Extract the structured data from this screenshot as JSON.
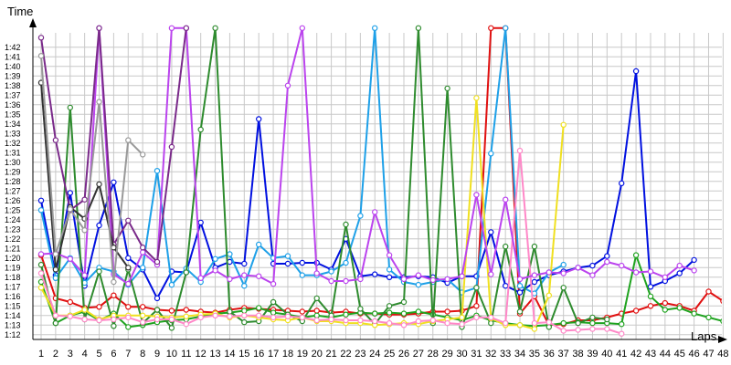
{
  "chart_data": {
    "type": "line",
    "ylabel": "Time",
    "xlabel": "Laps",
    "y_ticks": [
      "1:12",
      "1:13",
      "1:14",
      "1:15",
      "1:16",
      "1:17",
      "1:18",
      "1:19",
      "1:20",
      "1:21",
      "1:22",
      "1:23",
      "1:24",
      "1:25",
      "1:26",
      "1:27",
      "1:28",
      "1:29",
      "1:30",
      "1:31",
      "1:32",
      "1:33",
      "1:34",
      "1:35",
      "1:36",
      "1:37",
      "1:38",
      "1:39",
      "1:40",
      "1:41",
      "1:42"
    ],
    "x_ticks": [
      1,
      2,
      3,
      4,
      5,
      6,
      7,
      8,
      9,
      10,
      11,
      12,
      13,
      14,
      15,
      16,
      17,
      18,
      19,
      20,
      21,
      22,
      23,
      24,
      25,
      26,
      27,
      28,
      29,
      30,
      31,
      32,
      33,
      34,
      35,
      36,
      37,
      38,
      39,
      40,
      41,
      42,
      43,
      44,
      45,
      46,
      47,
      48
    ],
    "ylim_seconds": [
      71.5,
      103.5
    ],
    "xlim": [
      0,
      48.6
    ],
    "grid": true,
    "legend": "none",
    "series": [
      {
        "color": "#e01010",
        "x": [
          1,
          2,
          3,
          4,
          5,
          6,
          7,
          8,
          9,
          10,
          11,
          12,
          13,
          14,
          15,
          16,
          17,
          18,
          19,
          20,
          21,
          22,
          23,
          24,
          25,
          26,
          27,
          28,
          29,
          30,
          31,
          32,
          33,
          34,
          35,
          36,
          37,
          38,
          39,
          40,
          41,
          42,
          43,
          44,
          45,
          46,
          47,
          48
        ],
        "y": [
          80.3,
          75.8,
          75.4,
          74.8,
          74.9,
          76.1,
          74.9,
          74.9,
          74.6,
          74.5,
          74.6,
          74.4,
          74.3,
          74.6,
          74.8,
          74.7,
          74.6,
          74.5,
          74.4,
          74.5,
          74.3,
          74.4,
          74.2,
          74.2,
          74.1,
          74.1,
          74.2,
          74.4,
          74.4,
          74.5,
          75,
          104,
          104,
          74.2,
          76,
          73,
          73.1,
          73.5,
          73.5,
          73.8,
          74.2,
          74.5,
          75,
          75.3,
          75,
          74.5,
          76.5,
          75.5
        ]
      },
      {
        "color": "#0010e0",
        "x": [
          1,
          2,
          3,
          4,
          5,
          6,
          7,
          8,
          9,
          10,
          11,
          12,
          13,
          14,
          15,
          16,
          17,
          18,
          19,
          20,
          21,
          22,
          23,
          24,
          25,
          26,
          27,
          28,
          29,
          30,
          31,
          32,
          33,
          34,
          35,
          36,
          37,
          38,
          39,
          40,
          41,
          42,
          43,
          44,
          45,
          46
        ],
        "y": [
          86,
          78.2,
          86.8,
          77.1,
          83.4,
          87.9,
          80,
          78.8,
          75.8,
          78.6,
          78.5,
          83.7,
          79,
          79.6,
          79.4,
          94.5,
          79.4,
          79.4,
          79.5,
          79.5,
          78.8,
          82,
          78.1,
          78.3,
          78,
          78,
          78.1,
          78,
          77.4,
          78.1,
          78.1,
          82.7,
          77.1,
          76.4,
          77.5,
          78.2,
          78.6,
          79,
          79.2,
          80.2,
          87.8,
          99.5,
          77,
          77.6,
          78.4,
          79.8
        ]
      },
      {
        "color": "#1ea0e8",
        "x": [
          1,
          2,
          3,
          4,
          5,
          6,
          7,
          8,
          9,
          10,
          11,
          12,
          13,
          14,
          15,
          16,
          17,
          18,
          19,
          20,
          21,
          22,
          23,
          24,
          25,
          26,
          27,
          28,
          29,
          30,
          31,
          32,
          33,
          34,
          35,
          36,
          37
        ],
        "y": [
          85,
          77.9,
          80,
          77.4,
          79,
          78.6,
          77.2,
          79,
          89.1,
          77.2,
          78.9,
          77.5,
          79.9,
          80.4,
          77.1,
          81.4,
          80,
          80.2,
          78.2,
          78.2,
          78.6,
          79.5,
          84.4,
          104,
          78.8,
          77.5,
          77.2,
          77.5,
          77.8,
          76.4,
          76.9,
          90.9,
          104,
          77.1,
          76.3,
          78.5,
          79.3
        ]
      },
      {
        "color": "#1fa31f",
        "x": [
          1,
          2,
          3,
          4,
          5,
          6,
          7,
          8,
          9,
          10,
          11,
          12,
          13,
          14,
          15,
          16,
          17,
          18,
          19,
          20,
          21,
          22,
          23,
          24,
          25,
          26,
          27,
          28,
          29,
          30,
          31,
          32,
          33,
          34,
          35,
          36,
          37,
          38,
          39,
          40,
          41,
          42,
          43,
          44,
          45,
          46,
          47,
          48
        ],
        "y": [
          77.5,
          73.2,
          74,
          74.4,
          73.5,
          74.2,
          72.8,
          73,
          73.3,
          73.5,
          73.6,
          73.9,
          74.2,
          74.3,
          74.5,
          74.8,
          74.3,
          74.1,
          73.8,
          74,
          73.8,
          74.1,
          74.3,
          74.2,
          74.3,
          74.2,
          74.4,
          74.1,
          73.8,
          73.5,
          74,
          73.5,
          73.2,
          73,
          72.9,
          73,
          73.2,
          73.3,
          73.2,
          73.2,
          73.1,
          80.3,
          76,
          74.6,
          74.8,
          74.2,
          73.8,
          73.4
        ]
      },
      {
        "color": "#2e8b2e",
        "x": [
          1,
          2,
          3,
          4,
          5,
          6,
          7,
          8,
          9,
          10,
          11,
          12,
          13,
          14,
          15,
          16,
          17,
          18,
          19,
          20,
          21,
          22,
          23,
          24,
          25,
          26,
          27,
          28,
          29,
          30,
          31,
          32,
          33,
          34,
          35,
          36,
          37,
          38,
          39,
          40
        ],
        "y": [
          79.3,
          73.2,
          95.7,
          73.6,
          78.6,
          72.9,
          78.8,
          73.2,
          74.6,
          72.7,
          78.5,
          93.4,
          104,
          74.4,
          73.3,
          73.4,
          75.4,
          74.1,
          73.4,
          75.8,
          74,
          83.5,
          74.7,
          73.1,
          75,
          75.4,
          104,
          73.2,
          97.7,
          72.8,
          76.9,
          73.2,
          81.2,
          74.4,
          81.2,
          72.8,
          76.9,
          73.2,
          73.8,
          73.6
        ]
      },
      {
        "color": "#f0e020",
        "x": [
          1,
          2,
          3,
          4,
          5,
          6,
          7,
          8,
          9,
          10,
          11,
          12,
          13,
          14,
          15,
          16,
          17,
          18,
          19,
          20,
          21,
          22,
          23,
          24,
          25,
          26,
          27,
          28,
          29,
          30,
          31,
          32,
          33,
          34,
          35,
          36,
          37
        ],
        "y": [
          76.9,
          74,
          74,
          74.6,
          73.6,
          74,
          74,
          74,
          73.9,
          73.8,
          73.9,
          74.1,
          74.2,
          73.8,
          74,
          73.8,
          73.6,
          73.5,
          73.8,
          73.4,
          73.4,
          73.2,
          73.2,
          73,
          73.1,
          73.2,
          73.1,
          73.4,
          73.6,
          73.8,
          96.7,
          73.7,
          73,
          73,
          72.6,
          76.1,
          93.9
        ]
      },
      {
        "color": "#ff88c8",
        "x": [
          1,
          2,
          3,
          4,
          5,
          6,
          7,
          8,
          9,
          10,
          11,
          12,
          13,
          14,
          15,
          16,
          17,
          18,
          19,
          20,
          21,
          22,
          23,
          24,
          25,
          26,
          27,
          28,
          29,
          30,
          31,
          32,
          33,
          34,
          35,
          36,
          37,
          38,
          39,
          40,
          41
        ],
        "y": [
          78.4,
          74,
          73.9,
          73.6,
          73.5,
          73.6,
          73.8,
          73.3,
          73.6,
          73.6,
          73.1,
          73.8,
          74,
          73.9,
          74,
          74,
          73.8,
          73.9,
          73.8,
          73.5,
          73.6,
          73.5,
          73.5,
          73.4,
          73.2,
          73,
          73.4,
          73.5,
          73.2,
          73.1,
          73.8,
          73.8,
          73.2,
          91.2,
          73.2,
          73.3,
          72.4,
          72.5,
          72.6,
          72.6,
          72.1
        ]
      },
      {
        "color": "#bb44ee",
        "x": [
          1,
          2,
          3,
          4,
          5,
          6,
          7,
          8,
          9,
          10,
          11,
          12,
          13,
          14,
          15,
          16,
          17,
          18,
          19,
          20,
          21,
          22,
          23,
          24,
          25,
          26,
          27,
          28,
          29,
          30,
          31,
          32,
          33,
          34,
          35,
          36,
          37,
          38,
          39,
          40,
          41,
          42,
          43,
          44,
          45,
          46
        ],
        "y": [
          80.4,
          80.5,
          79.9,
          78.2,
          104,
          78.3,
          77.3,
          80.6,
          79.3,
          104,
          104,
          77.9,
          78.7,
          77.8,
          78.2,
          78.1,
          77.3,
          98,
          104,
          78.4,
          77.6,
          77.6,
          77.8,
          84.8,
          80.3,
          77.8,
          78.2,
          77.7,
          77.8,
          78.1,
          86.6,
          78.3,
          86.1,
          77.8,
          78.2,
          78.5,
          78.4,
          79,
          78.2,
          79.6,
          79.2,
          78.5,
          78.6,
          78,
          79.2,
          78.7
        ]
      },
      {
        "color": "#7a2a8a",
        "x": [
          1,
          2,
          3,
          4,
          5,
          6,
          7,
          8,
          9,
          10,
          11
        ],
        "y": [
          103,
          92.3,
          85,
          86.1,
          104,
          81.4,
          83.9,
          81.1,
          79.6,
          91.6,
          104
        ]
      },
      {
        "color": "#333333",
        "x": [
          1,
          2,
          3,
          4,
          5,
          6,
          7
        ],
        "y": [
          98.3,
          78.8,
          85.3,
          84.1,
          87.7,
          81.1,
          79
        ]
      },
      {
        "color": "#999999",
        "x": [
          1,
          2,
          3,
          4,
          5,
          6,
          7,
          8
        ],
        "y": [
          101.1,
          80.4,
          85.1,
          82.9,
          96.3,
          77.5,
          92.3,
          90.8
        ]
      }
    ]
  }
}
